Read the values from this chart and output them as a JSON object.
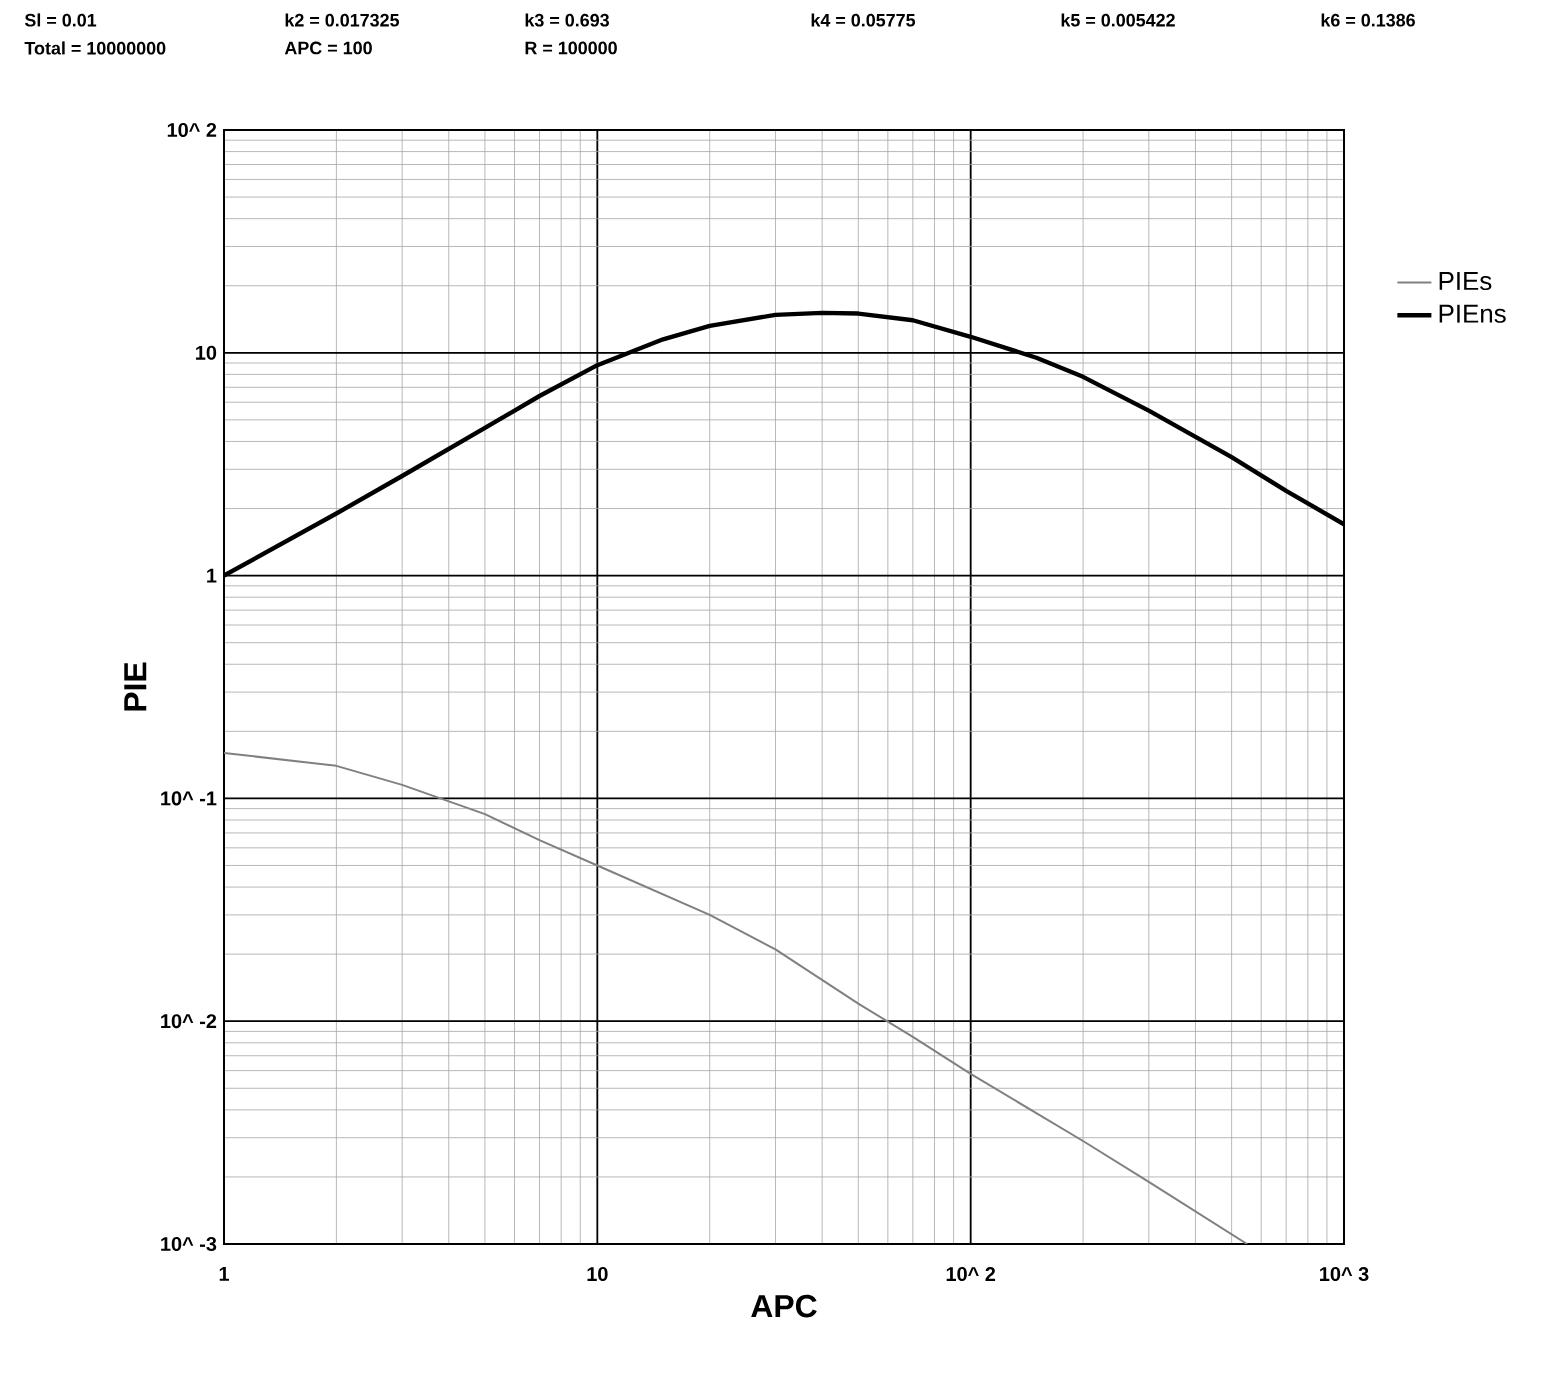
{
  "chart_data": {
    "type": "line",
    "xlabel": "APC",
    "ylabel": "PIE",
    "log": "xy",
    "grid": true,
    "legend": "top right",
    "marker": "none",
    "line_style": "solid",
    "xlim": [
      1,
      1000
    ],
    "ylim": [
      0.001,
      100
    ],
    "xticks": [
      1,
      10,
      {
        "value": 100,
        "label": "10^ 2"
      },
      {
        "value": 1000,
        "label": "10^ 3"
      }
    ],
    "yticks": [
      {
        "value": 0.001,
        "label": "10^ -3"
      },
      {
        "value": 0.01,
        "label": "10^ -2"
      },
      {
        "value": 0.1,
        "label": "10^ -1"
      },
      1,
      10,
      {
        "value": 100,
        "label": "10^ 2"
      }
    ],
    "annotations": [
      "Sl = 0.01",
      "k2 = 0.017325",
      "k3 = 0.693",
      "k4 = 0.05775",
      "k5 = 0.005422",
      "k6 = 0.1386",
      "Total = 10000000",
      "APC = 100",
      "R = 100000"
    ],
    "series": [
      {
        "name": "PIEs",
        "color": "#808080",
        "x": [
          1,
          2,
          3,
          5,
          7,
          10,
          20,
          30,
          50,
          70,
          100,
          200,
          300,
          550
        ],
        "values": [
          0.16,
          0.14,
          0.115,
          0.085,
          0.065,
          0.05,
          0.03,
          0.021,
          0.012,
          0.0085,
          0.0058,
          0.0029,
          0.0019,
          0.001
        ]
      },
      {
        "name": "PIEns",
        "color": "#000000",
        "x": [
          1,
          2,
          3,
          5,
          7,
          10,
          15,
          20,
          30,
          40,
          50,
          70,
          100,
          150,
          200,
          300,
          500,
          700,
          1000
        ],
        "values": [
          1,
          1.9,
          2.8,
          4.6,
          6.4,
          8.8,
          11.5,
          13.2,
          14.8,
          15.1,
          15,
          14,
          11.8,
          9.5,
          7.8,
          5.5,
          3.4,
          2.4,
          1.7
        ]
      }
    ]
  }
}
